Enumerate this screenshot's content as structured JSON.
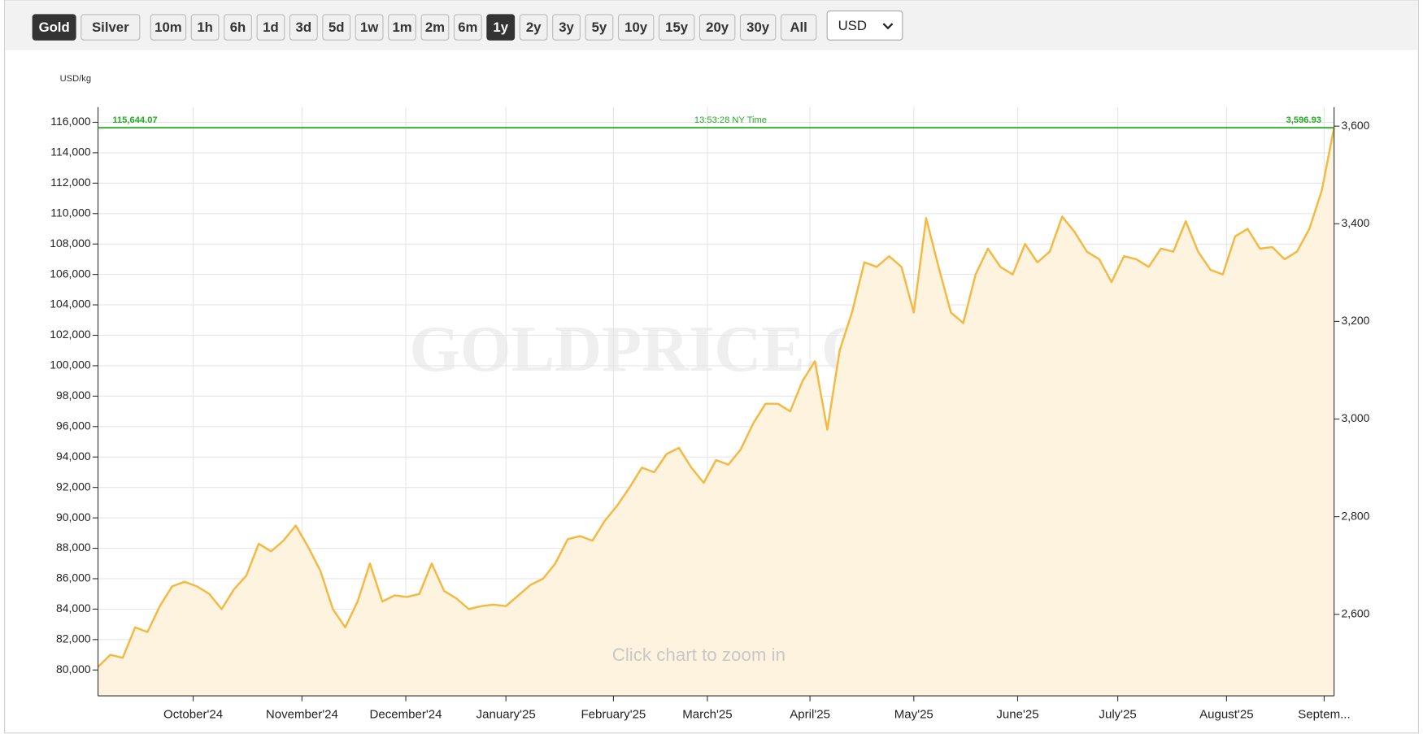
{
  "toolbar": {
    "metals": [
      "Gold",
      "Silver"
    ],
    "ranges": [
      "10m",
      "1h",
      "6h",
      "1d",
      "3d",
      "5d",
      "1w",
      "1m",
      "2m",
      "6m",
      "1y",
      "2y",
      "3y",
      "5y",
      "10y",
      "15y",
      "20y",
      "30y",
      "All"
    ],
    "active_metal_index": 0,
    "active_range_index": 10,
    "currency": "USD"
  },
  "chart_data": {
    "type": "area",
    "y_label": "USD/kg",
    "watermark": "GOLDPRICE.ORG",
    "hint": "Click chart to zoom in",
    "time_label": "13:53:28 NY Time",
    "current": {
      "value": 115644.07,
      "label": "115,644.07"
    },
    "current_y2": {
      "value": 3596.93,
      "label": "3,596.93"
    },
    "current_color": "#22aa22",
    "series": [
      {
        "name": "Gold",
        "color": "#f4b942",
        "fill": "#fdf3de",
        "values": [
          80200,
          81000,
          80800,
          82800,
          82500,
          84200,
          85500,
          85800,
          85500,
          85000,
          84000,
          85300,
          86200,
          88300,
          87800,
          88500,
          89500,
          88100,
          86500,
          84000,
          82800,
          84500,
          87000,
          84500,
          84900,
          84800,
          85000,
          87000,
          85200,
          84700,
          84000,
          84200,
          84300,
          84200,
          84900,
          85600,
          86000,
          87000,
          88600,
          88800,
          88500,
          89800,
          90800,
          92000,
          93300,
          93000,
          94200,
          94600,
          93300,
          92300,
          93800,
          93500,
          94500,
          96200,
          97500,
          97500,
          97000,
          99000,
          100300,
          95800,
          101000,
          103500,
          106800,
          106500,
          107200,
          106500,
          103500,
          109700,
          106500,
          103500,
          102800,
          106000,
          107700,
          106500,
          106000,
          108000,
          106800,
          107500,
          109800,
          108800,
          107500,
          107000,
          105500,
          107200,
          107000,
          106500,
          107700,
          107500,
          109500,
          107500,
          106300,
          106000,
          108500,
          109000,
          107700,
          107800,
          107000,
          107500,
          109000,
          111500,
          115644.07
        ]
      }
    ],
    "xlim": [
      0,
      100
    ],
    "xticks": [
      {
        "value": 7.7,
        "label": "October'24"
      },
      {
        "value": 16.5,
        "label": "November'24"
      },
      {
        "value": 24.9,
        "label": "December'24"
      },
      {
        "value": 33,
        "label": "January'25"
      },
      {
        "value": 41.7,
        "label": "February'25"
      },
      {
        "value": 49.3,
        "label": "March'25"
      },
      {
        "value": 57.6,
        "label": "April'25"
      },
      {
        "value": 66,
        "label": "May'25"
      },
      {
        "value": 74.4,
        "label": "June'25"
      },
      {
        "value": 82.5,
        "label": "July'25"
      },
      {
        "value": 91.3,
        "label": "August'25"
      },
      {
        "value": 99.2,
        "label": "Septem..."
      }
    ],
    "ylim": [
      78300,
      117000
    ],
    "yticks": [
      {
        "value": 80000,
        "label": "80,000"
      },
      {
        "value": 82000,
        "label": "82,000"
      },
      {
        "value": 84000,
        "label": "84,000"
      },
      {
        "value": 86000,
        "label": "86,000"
      },
      {
        "value": 88000,
        "label": "88,000"
      },
      {
        "value": 90000,
        "label": "90,000"
      },
      {
        "value": 92000,
        "label": "92,000"
      },
      {
        "value": 94000,
        "label": "94,000"
      },
      {
        "value": 96000,
        "label": "96,000"
      },
      {
        "value": 98000,
        "label": "98,000"
      },
      {
        "value": 100000,
        "label": "100,000"
      },
      {
        "value": 102000,
        "label": "102,000"
      },
      {
        "value": 104000,
        "label": "104,000"
      },
      {
        "value": 106000,
        "label": "106,000"
      },
      {
        "value": 108000,
        "label": "108,000"
      },
      {
        "value": 110000,
        "label": "110,000"
      },
      {
        "value": 112000,
        "label": "112,000"
      },
      {
        "value": 114000,
        "label": "114,000"
      },
      {
        "value": 116000,
        "label": "116,000"
      }
    ],
    "y2lim": [
      2433,
      3639
    ],
    "y2ticks": [
      {
        "value": 2600,
        "label": "2,600"
      },
      {
        "value": 2800,
        "label": "2,800"
      },
      {
        "value": 3000,
        "label": "3,000"
      },
      {
        "value": 3200,
        "label": "3,200"
      },
      {
        "value": 3400,
        "label": "3,400"
      },
      {
        "value": 3600,
        "label": "3,600"
      }
    ],
    "grid": true
  }
}
